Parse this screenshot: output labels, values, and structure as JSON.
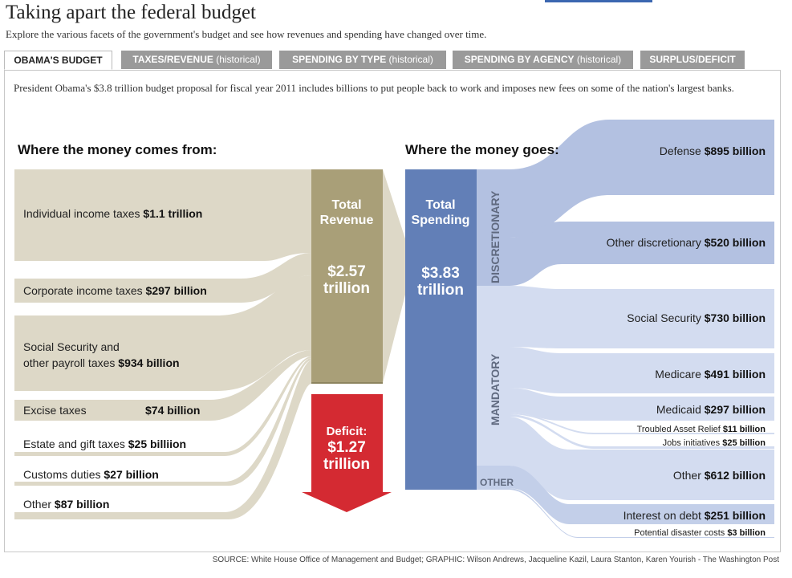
{
  "header": {
    "title": "Taking apart the federal budget",
    "subtitle": "Explore the various facets of the government's budget and see how revenues and spending have changed over time."
  },
  "tabs": [
    {
      "label": "OBAMA'S BUDGET",
      "suffix": ""
    },
    {
      "label": "TAXES/REVENUE",
      "suffix": " (historical)"
    },
    {
      "label": "SPENDING BY TYPE",
      "suffix": " (historical)"
    },
    {
      "label": "SPENDING BY AGENCY",
      "suffix": " (historical)"
    },
    {
      "label": "SURPLUS/DEFICIT",
      "suffix": ""
    }
  ],
  "intro": "President Obama's $3.8 trillion budget proposal for fiscal year 2011 includes billions to put people back to work and imposes new fees on some of the nation's largest banks.",
  "revenue_heading": "Where the money comes from:",
  "spending_heading": "Where the money goes:",
  "revenue_sources": [
    {
      "name": "Individual income taxes ",
      "amount": "$1.1 trillion"
    },
    {
      "name": "Corporate income taxes ",
      "amount": "$297 billion"
    },
    {
      "name": "Social Security and",
      "name2": "other payroll taxes ",
      "amount": "$934 billion"
    },
    {
      "name": "Excise taxes",
      "amount": "$74 billion"
    },
    {
      "name": "Estate and gift taxes ",
      "amount": "$25 billiion"
    },
    {
      "name": "Customs duties ",
      "amount": "$27 billion"
    },
    {
      "name": "Other ",
      "amount": "$87 billion"
    }
  ],
  "total_revenue": {
    "line1": "Total",
    "line2": "Revenue",
    "value1": "$2.57",
    "value2": "trillion"
  },
  "total_spending": {
    "line1": "Total",
    "line2": "Spending",
    "value1": "$3.83",
    "value2": "trillion"
  },
  "deficit": {
    "line1": "Deficit:",
    "line2": "$1.27",
    "line3": "trillion"
  },
  "groups": {
    "discretionary": "DISCRETIONARY",
    "mandatory": "MANDATORY",
    "other": "OTHER"
  },
  "spending_items": [
    {
      "name": "Defense ",
      "amount": "$895 billion"
    },
    {
      "name": "Other discretionary ",
      "amount": "$520 billion"
    },
    {
      "name": "Social Security ",
      "amount": "$730 billion"
    },
    {
      "name": "Medicare ",
      "amount": "$491 billion"
    },
    {
      "name": "Medicaid ",
      "amount": "$297 billion"
    },
    {
      "name": "Troubled Asset Relief ",
      "amount": "$11 billion"
    },
    {
      "name": "Jobs initiatives ",
      "amount": "$25 billion"
    },
    {
      "name": "Other ",
      "amount": " $612 billion"
    },
    {
      "name": "Interest on debt ",
      "amount": "$251 billion"
    },
    {
      "name": "Potential disaster costs ",
      "amount": "$3 billion"
    }
  ],
  "colors": {
    "revenue_flow": "#ddd8c7",
    "revenue_box": "#a99f78",
    "spending_box": "#627fb7",
    "discretionary": "#b3c1e1",
    "mandatory": "#d3dcf0",
    "other_flow": "#c3cfe9",
    "deficit": "#d42a32",
    "group_label": "#606a80"
  },
  "source": "SOURCE: White House Office of Management and Budget; GRAPHIC: Wilson Andrews, Jacqueline Kazil, Laura Stanton, Karen Yourish - The Washington Post"
}
